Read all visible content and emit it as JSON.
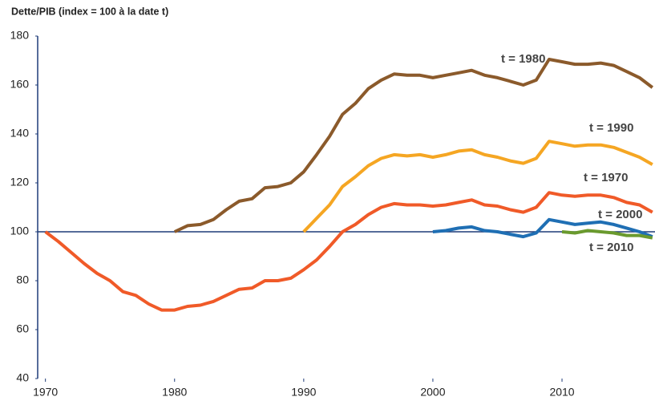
{
  "chart_data": {
    "type": "line",
    "title": "Dette/PIB (index = 100 à la date t)",
    "x": [
      1970,
      1971,
      1972,
      1973,
      1974,
      1975,
      1976,
      1977,
      1978,
      1979,
      1980,
      1981,
      1982,
      1983,
      1984,
      1985,
      1986,
      1987,
      1988,
      1989,
      1990,
      1991,
      1992,
      1993,
      1994,
      1995,
      1996,
      1997,
      1998,
      1999,
      2000,
      2001,
      2002,
      2003,
      2004,
      2005,
      2006,
      2007,
      2008,
      2009,
      2010,
      2011,
      2012,
      2013,
      2014,
      2015,
      2016,
      2017
    ],
    "series": [
      {
        "name": "t = 1970",
        "color": "#f05a28",
        "values": [
          100,
          96,
          91.5,
          87,
          83,
          80,
          75.5,
          74,
          70.5,
          68,
          68,
          69.5,
          70,
          71.5,
          74,
          76.5,
          77,
          80,
          80,
          81,
          84.5,
          88.5,
          94,
          100,
          103,
          107,
          110,
          111.5,
          111,
          111,
          110.5,
          111,
          112,
          113,
          111,
          110.5,
          109,
          108,
          110,
          116,
          115,
          114.5,
          115,
          115,
          114,
          112,
          111,
          108
        ]
      },
      {
        "name": "t = 1980",
        "color": "#8b5a2b",
        "values": [
          null,
          null,
          null,
          null,
          null,
          null,
          null,
          null,
          null,
          null,
          100,
          102.5,
          103,
          105,
          109,
          112.5,
          113.5,
          118,
          118.5,
          120,
          124.5,
          131.5,
          139,
          148,
          152.5,
          158.5,
          162,
          164.5,
          164,
          164,
          163,
          164,
          165,
          166,
          164,
          163,
          161.5,
          160,
          162,
          170.5,
          169.5,
          168.5,
          168.5,
          169,
          168,
          165.5,
          163,
          159
        ]
      },
      {
        "name": "t = 1990",
        "color": "#f5a623",
        "values": [
          null,
          null,
          null,
          null,
          null,
          null,
          null,
          null,
          null,
          null,
          null,
          null,
          null,
          null,
          null,
          null,
          null,
          null,
          null,
          null,
          100,
          105.5,
          111,
          118.5,
          122.5,
          127,
          130,
          131.5,
          131,
          131.5,
          130.5,
          131.5,
          133,
          133.5,
          131.5,
          130.5,
          129,
          128,
          130,
          137,
          136,
          135,
          135.5,
          135.5,
          134.5,
          132.5,
          130.5,
          127.5
        ]
      },
      {
        "name": "t = 2000",
        "color": "#1f6fb4",
        "values": [
          null,
          null,
          null,
          null,
          null,
          null,
          null,
          null,
          null,
          null,
          null,
          null,
          null,
          null,
          null,
          null,
          null,
          null,
          null,
          null,
          null,
          null,
          null,
          null,
          null,
          null,
          null,
          null,
          null,
          null,
          100,
          100.5,
          101.5,
          102,
          100.5,
          100,
          99,
          98,
          99.5,
          105,
          104,
          103,
          103.5,
          104,
          103,
          101.5,
          100,
          98
        ]
      },
      {
        "name": "t = 2010",
        "color": "#6a9a2e",
        "values": [
          null,
          null,
          null,
          null,
          null,
          null,
          null,
          null,
          null,
          null,
          null,
          null,
          null,
          null,
          null,
          null,
          null,
          null,
          null,
          null,
          null,
          null,
          null,
          null,
          null,
          null,
          null,
          null,
          null,
          null,
          null,
          null,
          null,
          null,
          null,
          null,
          null,
          null,
          null,
          null,
          100,
          99.5,
          100.5,
          100,
          99.5,
          98.5,
          98.5,
          97.5
        ]
      }
    ],
    "reference_line": 100,
    "xlim": [
      1969.4,
      2017.2
    ],
    "xticks": [
      1970,
      1980,
      1990,
      2000,
      2010
    ],
    "ylim": [
      40,
      180
    ],
    "yticks": [
      40,
      60,
      80,
      100,
      120,
      140,
      160,
      180
    ],
    "grid": false
  }
}
